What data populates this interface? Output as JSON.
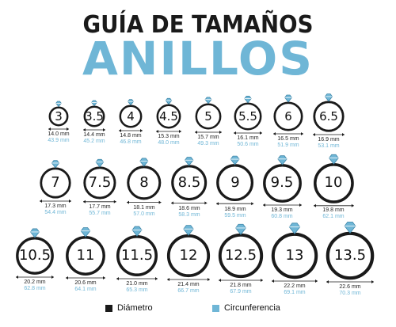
{
  "title": {
    "line1": "GUÍA DE TAMAÑOS",
    "line2": "ANILLOS"
  },
  "colors": {
    "dark": "#1a1a1a",
    "accent": "#6fb6d6"
  },
  "icons": {
    "gem": "diamond-gem-icon",
    "ring": "ring-icon",
    "arrow": "double-arrow-icon"
  },
  "rings": [
    {
      "size": "3",
      "diameter": "14.0 mm",
      "circumference": "43.9 mm"
    },
    {
      "size": "3.5",
      "diameter": "14.4 mm",
      "circumference": "45.2 mm"
    },
    {
      "size": "4",
      "diameter": "14.8 mm",
      "circumference": "46.8 mm"
    },
    {
      "size": "4.5",
      "diameter": "15.3 mm",
      "circumference": "48.0 mm"
    },
    {
      "size": "5",
      "diameter": "15.7 mm",
      "circumference": "49.3 mm"
    },
    {
      "size": "5.5",
      "diameter": "16.1 mm",
      "circumference": "50.6 mm"
    },
    {
      "size": "6",
      "diameter": "16.5 mm",
      "circumference": "51.9 mm"
    },
    {
      "size": "6.5",
      "diameter": "16.9 mm",
      "circumference": "53.1 mm"
    },
    {
      "size": "7",
      "diameter": "17.3 mm",
      "circumference": "54.4 mm"
    },
    {
      "size": "7.5",
      "diameter": "17.7 mm",
      "circumference": "55.7 mm"
    },
    {
      "size": "8",
      "diameter": "18.1 mm",
      "circumference": "57.0 mm"
    },
    {
      "size": "8.5",
      "diameter": "18.6 mm",
      "circumference": "58.3 mm"
    },
    {
      "size": "9",
      "diameter": "18.9 mm",
      "circumference": "59.5 mm"
    },
    {
      "size": "9.5",
      "diameter": "19.3 mm",
      "circumference": "60.8 mm"
    },
    {
      "size": "10",
      "diameter": "19.8 mm",
      "circumference": "62.1 mm"
    },
    {
      "size": "10.5",
      "diameter": "20.2 mm",
      "circumference": "62.8 mm"
    },
    {
      "size": "11",
      "diameter": "20.6 mm",
      "circumference": "64.1 mm"
    },
    {
      "size": "11.5",
      "diameter": "21.0 mm",
      "circumference": "65.3 mm"
    },
    {
      "size": "12",
      "diameter": "21.4 mm",
      "circumference": "66.7 mm"
    },
    {
      "size": "12.5",
      "diameter": "21.8 mm",
      "circumference": "67.9 mm"
    },
    {
      "size": "13",
      "diameter": "22.2 mm",
      "circumference": "69.1 mm"
    },
    {
      "size": "13.5",
      "diameter": "22.6 mm",
      "circumference": "70.3 mm"
    }
  ],
  "legend": {
    "diameter_label": "Diámetro",
    "circumference_label": "Circunferencia"
  }
}
